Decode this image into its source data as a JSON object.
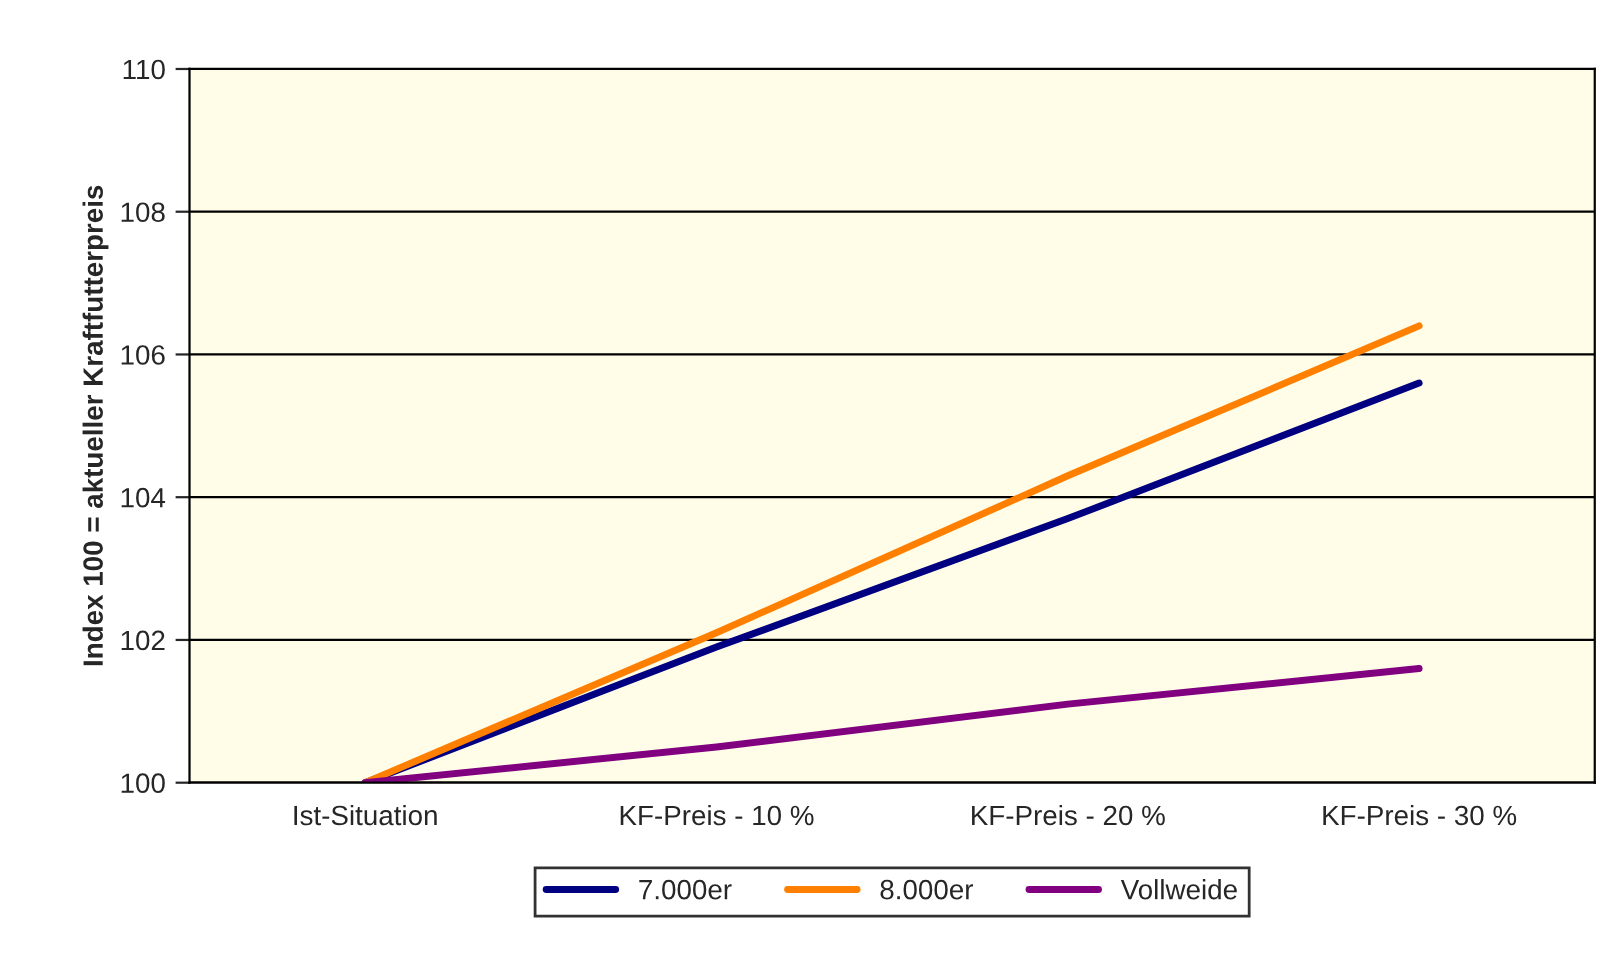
{
  "chart_data": {
    "type": "line",
    "ylabel": "Index 100 = aktueller Kraftfutterpreis",
    "categories": [
      "Ist-Situation",
      "KF-Preis - 10 %",
      "KF-Preis - 20 %",
      "KF-Preis - 30 %"
    ],
    "series": [
      {
        "name": "7.000er",
        "color": "#000080",
        "values": [
          100,
          101.9,
          103.7,
          105.6
        ]
      },
      {
        "name": "8.000er",
        "color": "#ff7f00",
        "values": [
          100,
          102.1,
          104.3,
          106.4
        ]
      },
      {
        "name": "Vollweide",
        "color": "#800080",
        "values": [
          100,
          100.5,
          101.1,
          101.6
        ]
      }
    ],
    "ylim": [
      100,
      110
    ],
    "yticks": [
      100,
      102,
      104,
      106,
      108,
      110
    ],
    "grid": "y",
    "legend": "bottom",
    "marker": "none",
    "line_style": "solid"
  }
}
